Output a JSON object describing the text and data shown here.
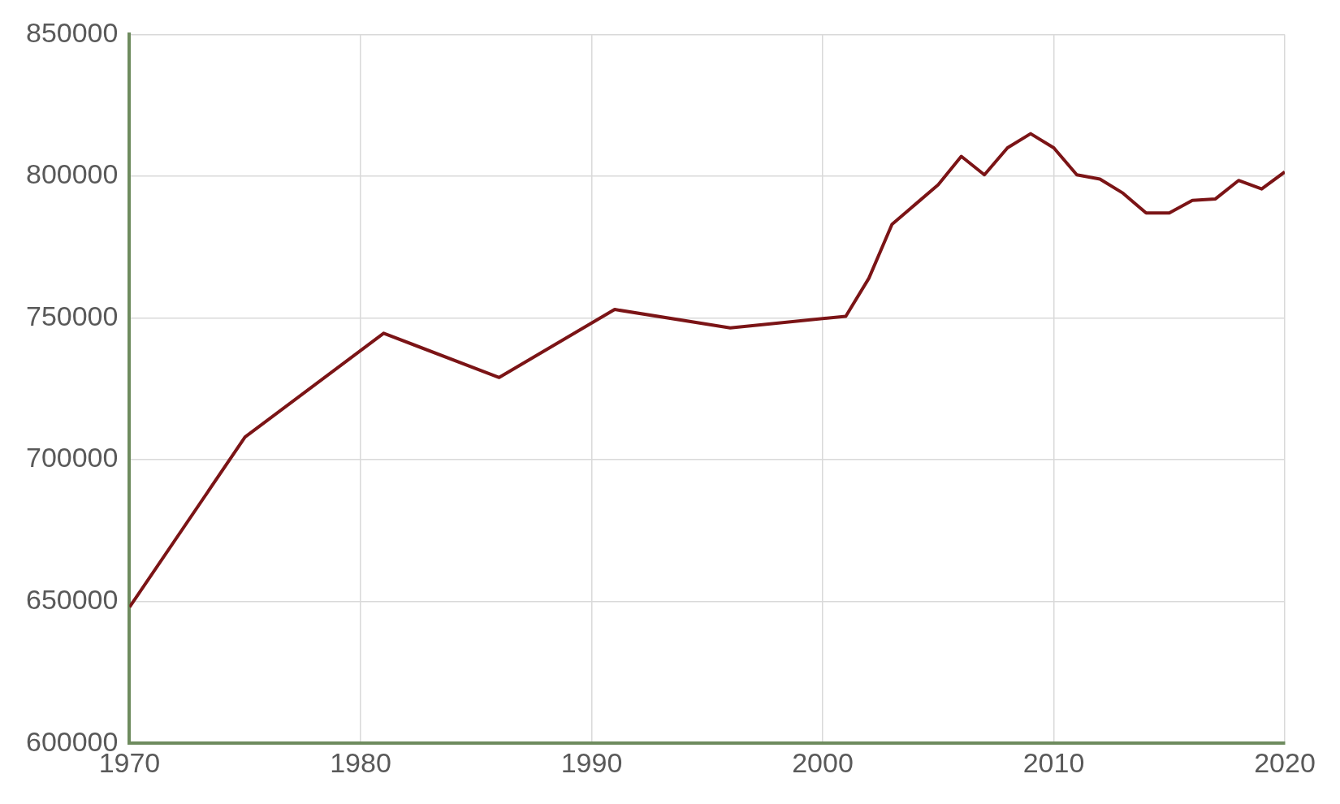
{
  "chart_data": {
    "type": "line",
    "x": [
      1970,
      1975,
      1981,
      1986,
      1991,
      1996,
      2001,
      2002,
      2003,
      2004,
      2005,
      2006,
      2007,
      2008,
      2009,
      2010,
      2011,
      2012,
      2013,
      2014,
      2015,
      2016,
      2017,
      2018,
      2019,
      2020
    ],
    "series": [
      {
        "color": "#7b1416",
        "values": [
          648000,
          708000,
          744600,
          729000,
          753000,
          746500,
          750600,
          764000,
          783000,
          790000,
          797000,
          807000,
          800500,
          810000,
          815000,
          810000,
          800500,
          799000,
          794000,
          787000,
          787000,
          791500,
          792000,
          798500,
          795500,
          801500
        ]
      }
    ],
    "xlim": [
      1970,
      2020
    ],
    "xticks": [
      1970,
      1980,
      1990,
      2000,
      2010,
      2020
    ],
    "ylim": [
      600000,
      850000
    ],
    "yticks": [
      600000,
      650000,
      700000,
      750000,
      800000,
      850000
    ],
    "grid": true,
    "legend": false,
    "marker": "none",
    "line_style": "solid"
  }
}
